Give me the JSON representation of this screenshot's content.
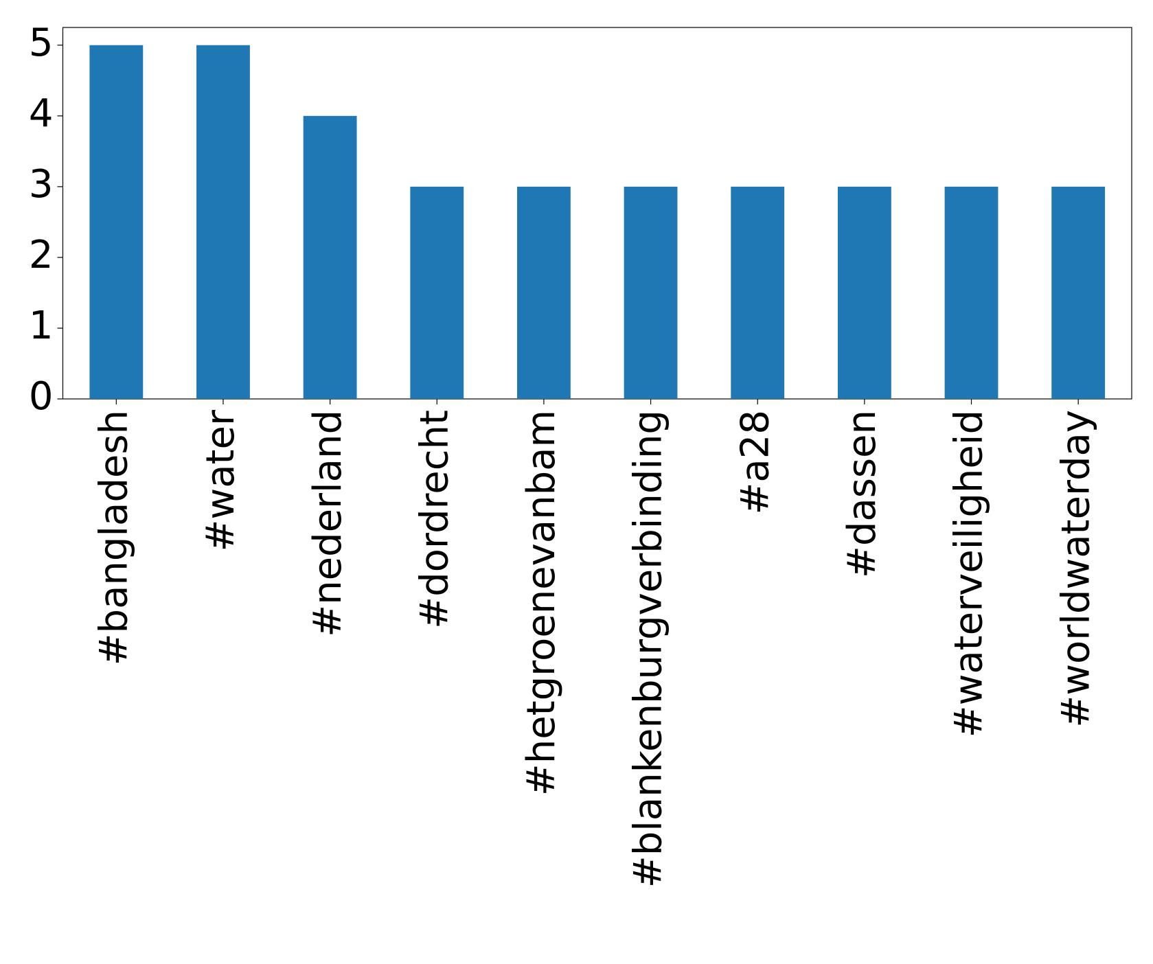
{
  "chart_data": {
    "type": "bar",
    "categories": [
      "#bangladesh",
      "#water",
      "#nederland",
      "#dordrecht",
      "#hetgroenevanbam",
      "#blankenburgverbinding",
      "#a28",
      "#dassen",
      "#waterveiligheid",
      "#worldwaterday"
    ],
    "values": [
      5,
      5,
      4,
      3,
      3,
      3,
      3,
      3,
      3,
      3
    ],
    "color": "#1f77b4",
    "ylim": [
      0,
      5.25
    ],
    "yticks": [
      0,
      1,
      2,
      3,
      4,
      5
    ],
    "grid": false
  }
}
